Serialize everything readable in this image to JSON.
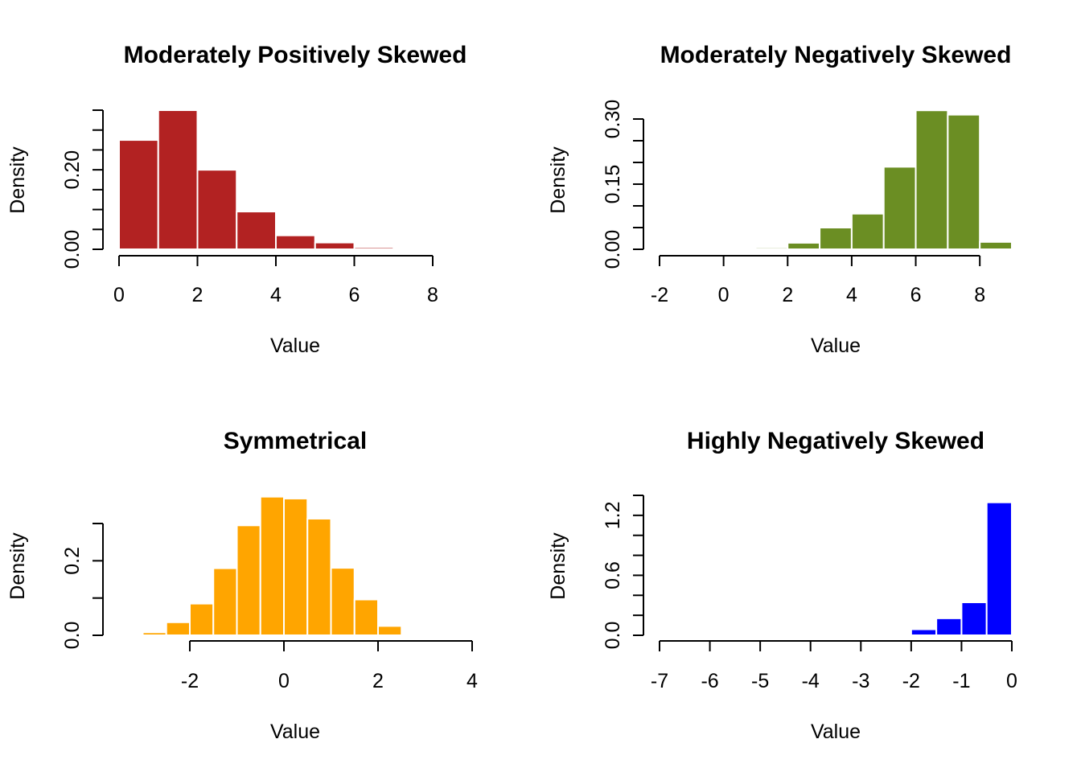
{
  "chart_data": [
    {
      "type": "bar",
      "title": "Moderately Positively Skewed",
      "xlabel": "Value",
      "ylabel": "Density",
      "color": "#B22222",
      "xlim": [
        0,
        8
      ],
      "ylim": [
        0,
        0.35
      ],
      "x_ticks": [
        0,
        2,
        4,
        6,
        8
      ],
      "x_tick_labels": [
        "0",
        "2",
        "4",
        "6",
        "8"
      ],
      "y_ticks": [
        0,
        0.05,
        0.1,
        0.15,
        0.2,
        0.25,
        0.3,
        0.35
      ],
      "y_tick_labels": [
        "0.00",
        "",
        "",
        "",
        "0.20",
        "",
        "",
        ""
      ],
      "bins": [
        {
          "from": 0,
          "to": 1,
          "density": 0.275
        },
        {
          "from": 1,
          "to": 2,
          "density": 0.35
        },
        {
          "from": 2,
          "to": 3,
          "density": 0.2
        },
        {
          "from": 3,
          "to": 4,
          "density": 0.095
        },
        {
          "from": 4,
          "to": 5,
          "density": 0.035
        },
        {
          "from": 5,
          "to": 6,
          "density": 0.017
        },
        {
          "from": 6,
          "to": 7,
          "density": 0.005
        }
      ]
    },
    {
      "type": "bar",
      "title": "Moderately Negatively Skewed",
      "xlabel": "Value",
      "ylabel": "Density",
      "color": "#6B8E23",
      "xlim": [
        -2,
        9
      ],
      "ylim": [
        0,
        0.3
      ],
      "x_ticks": [
        -2,
        0,
        2,
        4,
        6,
        8
      ],
      "x_tick_labels": [
        "-2",
        "0",
        "2",
        "4",
        "6",
        "8"
      ],
      "y_ticks": [
        0,
        0.05,
        0.1,
        0.15,
        0.2,
        0.25,
        0.3
      ],
      "y_tick_labels": [
        "0.00",
        "",
        "",
        "0.15",
        "",
        "",
        "0.30"
      ],
      "bins": [
        {
          "from": 1,
          "to": 2,
          "density": 0.004
        },
        {
          "from": 2,
          "to": 3,
          "density": 0.015
        },
        {
          "from": 3,
          "to": 4,
          "density": 0.05
        },
        {
          "from": 4,
          "to": 5,
          "density": 0.082
        },
        {
          "from": 5,
          "to": 6,
          "density": 0.19
        },
        {
          "from": 6,
          "to": 7,
          "density": 0.32
        },
        {
          "from": 7,
          "to": 8,
          "density": 0.31
        },
        {
          "from": 8,
          "to": 9,
          "density": 0.017
        }
      ]
    },
    {
      "type": "bar",
      "title": "Symmetrical",
      "xlabel": "Value",
      "ylabel": "Density",
      "color": "#FFA500",
      "xlim": [
        -2,
        4
      ],
      "ylim": [
        0,
        0.3
      ],
      "x_ticks": [
        -2,
        0,
        2,
        4
      ],
      "x_tick_labels": [
        "-2",
        "0",
        "2",
        "4"
      ],
      "y_ticks": [
        0,
        0.1,
        0.2,
        0.3
      ],
      "y_tick_labels": [
        "0.0",
        "",
        "0.2",
        ""
      ],
      "bins": [
        {
          "from": -3,
          "to": -2.5,
          "density": 0.008
        },
        {
          "from": -2.5,
          "to": -2,
          "density": 0.035
        },
        {
          "from": -2,
          "to": -1.5,
          "density": 0.085
        },
        {
          "from": -1.5,
          "to": -1,
          "density": 0.18
        },
        {
          "from": -1,
          "to": -0.5,
          "density": 0.295
        },
        {
          "from": -0.5,
          "to": 0,
          "density": 0.372
        },
        {
          "from": 0,
          "to": 0.5,
          "density": 0.367
        },
        {
          "from": 0.5,
          "to": 1,
          "density": 0.313
        },
        {
          "from": 1,
          "to": 1.5,
          "density": 0.181
        },
        {
          "from": 1.5,
          "to": 2,
          "density": 0.096
        },
        {
          "from": 2,
          "to": 2.5,
          "density": 0.025
        }
      ]
    },
    {
      "type": "bar",
      "title": "Highly Negatively Skewed",
      "xlabel": "Value",
      "ylabel": "Density",
      "color": "#0000FF",
      "xlim": [
        -7,
        0
      ],
      "ylim": [
        0,
        1.4
      ],
      "x_ticks": [
        -7,
        -6,
        -5,
        -4,
        -3,
        -2,
        -1,
        0
      ],
      "x_tick_labels": [
        "-7",
        "-6",
        "-5",
        "-4",
        "-3",
        "-2",
        "-1",
        "0"
      ],
      "y_ticks": [
        0,
        0.2,
        0.4,
        0.6,
        0.8,
        1.0,
        1.2,
        1.4
      ],
      "y_tick_labels": [
        "0.0",
        "",
        "",
        "0.6",
        "",
        "",
        "1.2",
        ""
      ],
      "bins": [
        {
          "from": -3,
          "to": -2.5,
          "density": 0.006
        },
        {
          "from": -2.5,
          "to": -2,
          "density": 0.01
        },
        {
          "from": -2,
          "to": -1.5,
          "density": 0.06
        },
        {
          "from": -1.5,
          "to": -1,
          "density": 0.17
        },
        {
          "from": -1,
          "to": -0.5,
          "density": 0.33
        },
        {
          "from": -0.5,
          "to": 0,
          "density": 1.33
        }
      ]
    }
  ]
}
